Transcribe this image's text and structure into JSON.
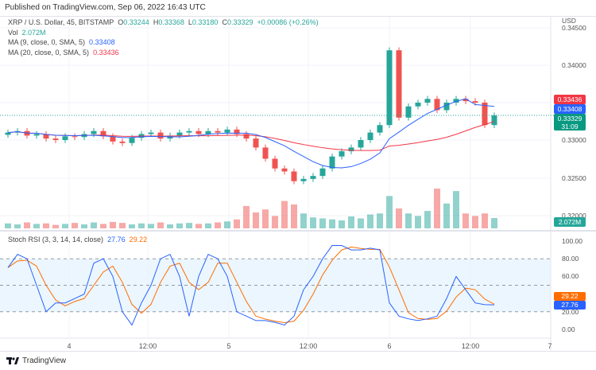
{
  "header": {
    "published": "Published on TradingView.com, Sep 06, 2022 16:43 UTC"
  },
  "legend": {
    "symbol": "XRP / U.S. Dollar, 45, BITSTAMP",
    "o_label": "O",
    "o": "0.33244",
    "h_label": "H",
    "h": "0.33368",
    "l_label": "L",
    "l": "0.33180",
    "c_label": "C",
    "c": "0.33329",
    "change": "+0.00086 (+0.26%)",
    "vol_label": "Vol",
    "vol": "2.072M",
    "ma9_label": "MA (9, close, 0, SMA, 5)",
    "ma9": "0.33408",
    "ma20_label": "MA (20, close, 0, SMA, 5)",
    "ma20": "0.33436",
    "stoch_label": "Stoch RSI (3, 3, 14, 14, close)",
    "stoch_k": "27.76",
    "stoch_d": "29.22"
  },
  "price_axis": {
    "currency": "USD",
    "ticks": [
      "0.34500",
      "0.34000",
      "0.33000",
      "0.32500",
      "0.32000"
    ],
    "tags": {
      "ma20": "0.33436",
      "ma9": "0.33408",
      "last": "0.33329",
      "countdown": "31:09",
      "volume": "2.072M"
    }
  },
  "stoch_axis": {
    "ticks": [
      "100.00",
      "80.00",
      "60.00",
      "20.00",
      "0.00"
    ],
    "tags": {
      "d": "29.22",
      "k": "27.76"
    }
  },
  "time_axis": [
    "4",
    "12:00",
    "5",
    "12:00",
    "6",
    "12:00",
    "7"
  ],
  "footer": {
    "brand": "TradingView"
  },
  "colors": {
    "up": "#26a69a",
    "down": "#ef5350",
    "ma9": "#2962ff",
    "ma20": "#f23645",
    "stoch_k": "#2962ff",
    "stoch_d": "#ff6d00",
    "band": "#e3f2fd"
  },
  "chart_data": {
    "type": "candlestick",
    "close": [
      0.331,
      0.3312,
      0.3306,
      0.3308,
      0.3302,
      0.33,
      0.3305,
      0.3304,
      0.3308,
      0.3312,
      0.3305,
      0.3298,
      0.3296,
      0.3303,
      0.3308,
      0.331,
      0.3302,
      0.3306,
      0.331,
      0.3312,
      0.3308,
      0.3312,
      0.331,
      0.3314,
      0.3308,
      0.3302,
      0.329,
      0.3275,
      0.3262,
      0.3258,
      0.3245,
      0.3248,
      0.3252,
      0.3262,
      0.3278,
      0.3285,
      0.329,
      0.33,
      0.331,
      0.332,
      0.342,
      0.333,
      0.3345,
      0.335,
      0.3355,
      0.334,
      0.335,
      0.3355,
      0.3352,
      0.335,
      0.332,
      0.3333
    ],
    "volume_m": [
      1.0,
      0.8,
      1.2,
      0.9,
      1.0,
      0.7,
      0.9,
      1.1,
      0.8,
      1.2,
      0.9,
      1.3,
      1.1,
      0.8,
      1.0,
      0.9,
      1.2,
      0.8,
      1.0,
      1.1,
      0.9,
      1.0,
      1.2,
      1.4,
      1.8,
      4.5,
      3.2,
      3.8,
      2.5,
      5.5,
      4.8,
      3.0,
      2.2,
      2.0,
      1.8,
      1.6,
      2.4,
      2.0,
      2.8,
      3.0,
      6.5,
      4.0,
      3.0,
      2.5,
      3.5,
      8.0,
      5.0,
      7.5,
      3.0,
      2.5,
      3.0,
      2.072
    ],
    "stoch_k": [
      70,
      85,
      80,
      50,
      20,
      30,
      30,
      35,
      40,
      75,
      80,
      60,
      20,
      5,
      30,
      50,
      80,
      85,
      60,
      15,
      60,
      85,
      80,
      60,
      20,
      15,
      10,
      10,
      8,
      5,
      15,
      45,
      60,
      80,
      95,
      95,
      90,
      90,
      92,
      90,
      30,
      15,
      12,
      10,
      12,
      15,
      35,
      60,
      45,
      30,
      28,
      27.76
    ],
    "price_range": [
      0.3195,
      0.3455
    ],
    "stoch_range": [
      0,
      100
    ],
    "stoch_levels": [
      80,
      50,
      20
    ]
  }
}
